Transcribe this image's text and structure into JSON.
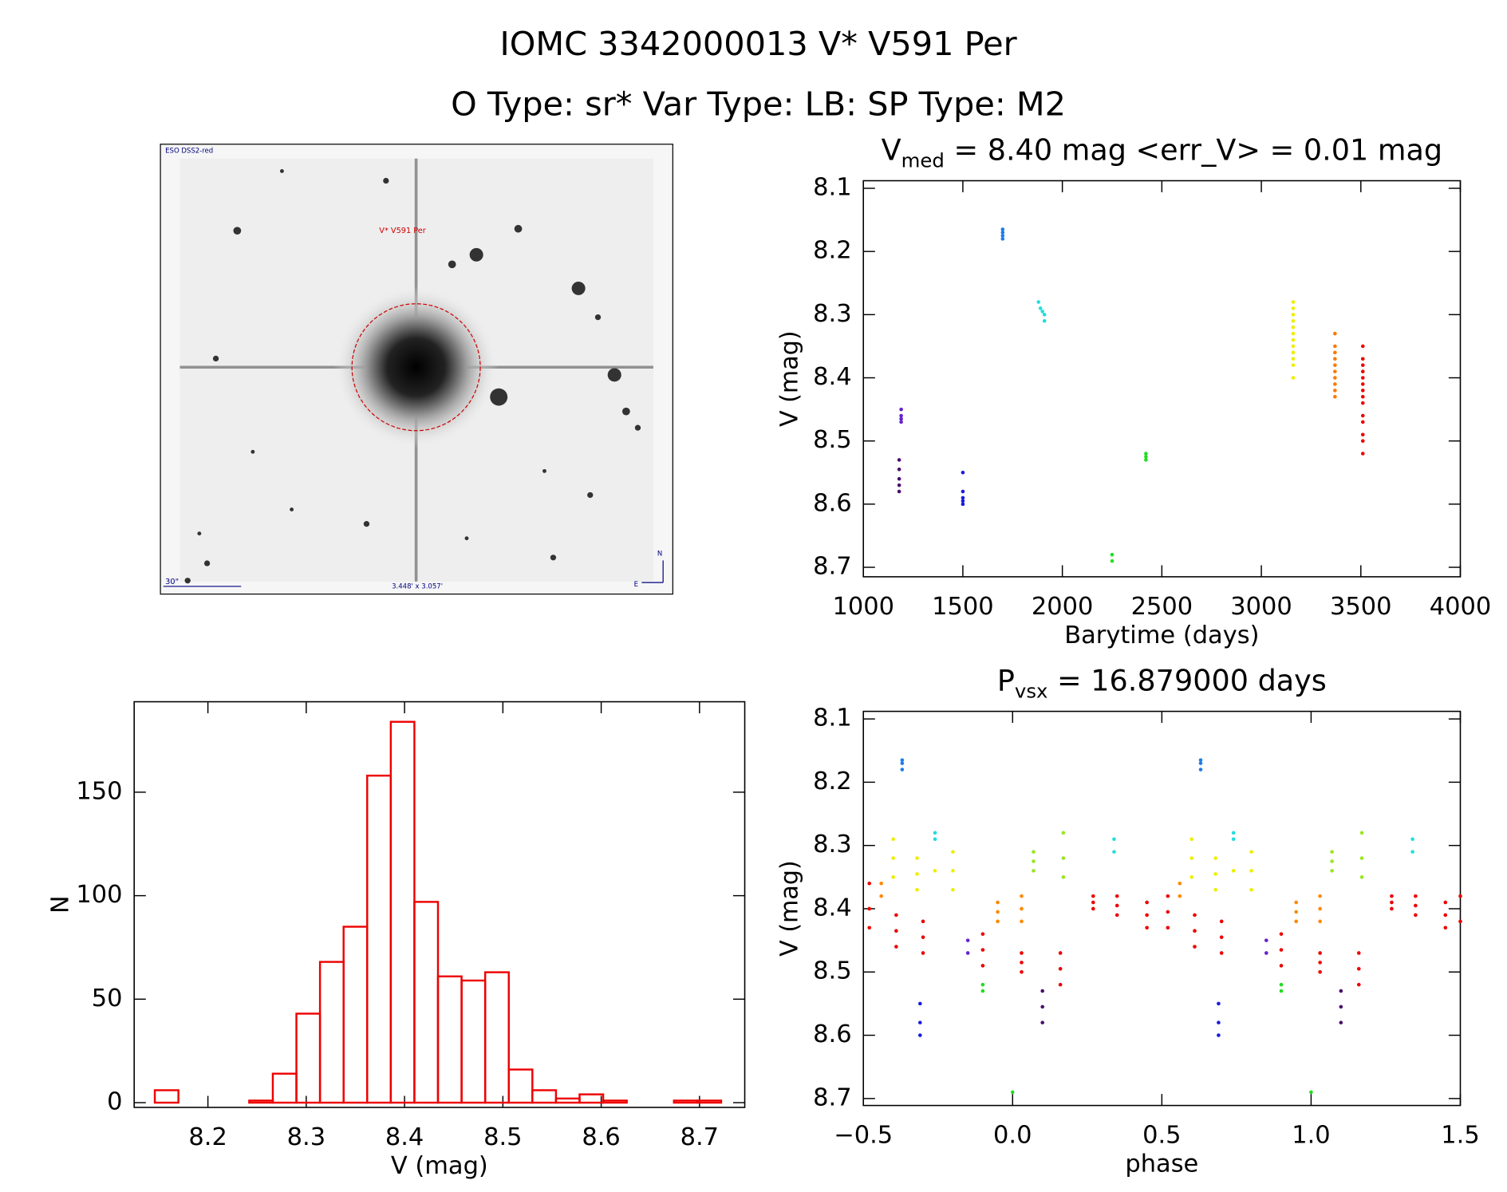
{
  "header": {
    "title": "IOMC 3342000013   V* V591 Per",
    "subtitle": "O Type: sr*  Var Type: LB:  SP Type: M2"
  },
  "image": {
    "survey": "ESO DSS2-red",
    "object": "V* V591 Per",
    "scale": "30\"",
    "size": "3.448' x 3.057'",
    "north": "N",
    "east": "E"
  },
  "chart_data": [
    {
      "type": "scatter",
      "title": {
        "main": "V",
        "sub": "med",
        "rest": " = 8.40 mag <err_V> = 0.01 mag"
      },
      "xlabel": "Barytime (days)",
      "ylabel": "V (mag)",
      "xlim": [
        1000,
        4000
      ],
      "xticks": [
        1000,
        1500,
        2000,
        2500,
        3000,
        3500,
        4000
      ],
      "ylim": [
        8.088,
        8.715
      ],
      "y_inverted": true,
      "yticks": [
        {
          "value": 8.1,
          "label": "8.1"
        },
        {
          "value": 8.2,
          "label": "8.2"
        },
        {
          "value": 8.3,
          "label": "8.3"
        },
        {
          "value": 8.4,
          "label": "8.4"
        },
        {
          "value": 8.5,
          "label": "8.5"
        },
        {
          "value": 8.6,
          "label": "8.6"
        },
        {
          "value": 8.7,
          "label": "8.7"
        }
      ],
      "series": [
        {
          "color": "#4b0f6e",
          "x": [
            1180,
            1180,
            1180,
            1180,
            1180
          ],
          "values": [
            8.53,
            8.545,
            8.56,
            8.57,
            8.58
          ]
        },
        {
          "color": "#6622cc",
          "x": [
            1190,
            1190,
            1190,
            1190
          ],
          "values": [
            8.45,
            8.46,
            8.465,
            8.47
          ]
        },
        {
          "color": "#1a1add",
          "x": [
            1500,
            1500,
            1500,
            1500,
            1500
          ],
          "values": [
            8.55,
            8.58,
            8.59,
            8.595,
            8.6
          ]
        },
        {
          "color": "#1e7ee8",
          "x": [
            1700,
            1700,
            1700,
            1700
          ],
          "values": [
            8.165,
            8.17,
            8.175,
            8.18
          ]
        },
        {
          "color": "#22dddd",
          "x": [
            1880,
            1890,
            1900,
            1910,
            1910
          ],
          "values": [
            8.28,
            8.29,
            8.295,
            8.3,
            8.31
          ]
        },
        {
          "color": "#22dd22",
          "x": [
            2250,
            2250,
            2420,
            2420,
            2420
          ],
          "values": [
            8.68,
            8.69,
            8.52,
            8.525,
            8.53
          ]
        },
        {
          "color": "#eeee00",
          "x": [
            3160,
            3160,
            3160,
            3160,
            3160,
            3160,
            3160,
            3160,
            3160,
            3160,
            3160,
            3160
          ],
          "values": [
            8.28,
            8.29,
            8.3,
            8.31,
            8.32,
            8.33,
            8.34,
            8.35,
            8.36,
            8.37,
            8.38,
            8.4
          ]
        },
        {
          "color": "#ff7700",
          "x": [
            3370,
            3370,
            3370,
            3370,
            3370,
            3370,
            3370,
            3370,
            3370,
            3370
          ],
          "values": [
            8.33,
            8.35,
            8.36,
            8.37,
            8.38,
            8.39,
            8.4,
            8.41,
            8.42,
            8.43
          ]
        },
        {
          "color": "#ee0000",
          "x": [
            3510,
            3510,
            3510,
            3510,
            3510,
            3510,
            3510,
            3510,
            3510,
            3510,
            3510,
            3510,
            3510,
            3510
          ],
          "values": [
            8.35,
            8.37,
            8.38,
            8.39,
            8.4,
            8.41,
            8.42,
            8.43,
            8.44,
            8.46,
            8.47,
            8.49,
            8.5,
            8.52
          ]
        }
      ]
    },
    {
      "type": "scatter",
      "title": {
        "main": "P",
        "sub": "vsx",
        "rest": " = 16.879000 days"
      },
      "xlabel": "phase",
      "ylabel": "V (mag)",
      "xlim": [
        -0.5,
        1.5
      ],
      "xticks": [
        {
          "value": -0.5,
          "label": "−0.5"
        },
        {
          "value": 0,
          "label": "0.0"
        },
        {
          "value": 0.5,
          "label": "0.5"
        },
        {
          "value": 1,
          "label": "1.0"
        },
        {
          "value": 1.5,
          "label": "1.5"
        }
      ],
      "ylim": [
        8.088,
        8.711
      ],
      "y_inverted": true,
      "yticks": [
        {
          "value": 8.1,
          "label": "8.1"
        },
        {
          "value": 8.2,
          "label": "8.2"
        },
        {
          "value": 8.3,
          "label": "8.3"
        },
        {
          "value": 8.4,
          "label": "8.4"
        },
        {
          "value": 8.5,
          "label": "8.5"
        },
        {
          "value": 8.6,
          "label": "8.6"
        },
        {
          "value": 8.7,
          "label": "8.7"
        }
      ],
      "series": [
        {
          "color": "#4b0f6e",
          "x": [
            0.1,
            0.1,
            0.1,
            1.1,
            1.1,
            1.1
          ],
          "values": [
            8.53,
            8.555,
            8.58,
            8.53,
            8.555,
            8.58
          ]
        },
        {
          "color": "#6622cc",
          "x": [
            -0.15,
            -0.15,
            0.85,
            0.85
          ],
          "values": [
            8.45,
            8.47,
            8.45,
            8.47
          ]
        },
        {
          "color": "#1a1add",
          "x": [
            -0.31,
            -0.31,
            -0.31,
            0.69,
            0.69,
            0.69
          ],
          "values": [
            8.55,
            8.58,
            8.6,
            8.55,
            8.58,
            8.6
          ]
        },
        {
          "color": "#1e7ee8",
          "x": [
            -0.37,
            -0.37,
            -0.37,
            0.63,
            0.63,
            0.63
          ],
          "values": [
            8.165,
            8.17,
            8.18,
            8.165,
            8.17,
            8.18
          ]
        },
        {
          "color": "#22dddd",
          "x": [
            -0.26,
            -0.26,
            0.34,
            0.34,
            0.74,
            0.74,
            1.34,
            1.34
          ],
          "values": [
            8.28,
            8.29,
            8.29,
            8.31,
            8.28,
            8.29,
            8.29,
            8.31
          ]
        },
        {
          "color": "#22dd22",
          "x": [
            -0.1,
            -0.1,
            0,
            0.9,
            0.9,
            1
          ],
          "values": [
            8.52,
            8.53,
            8.69,
            8.52,
            8.53,
            8.69
          ]
        },
        {
          "color": "#99e622",
          "x": [
            0.07,
            0.07,
            0.07,
            0.17,
            0.17,
            0.17,
            1.07,
            1.07,
            1.07,
            1.17,
            1.17,
            1.17
          ],
          "values": [
            8.31,
            8.325,
            8.34,
            8.28,
            8.32,
            8.35,
            8.31,
            8.325,
            8.34,
            8.28,
            8.32,
            8.35
          ]
        },
        {
          "color": "#eeee00",
          "x": [
            -0.4,
            -0.4,
            -0.4,
            -0.32,
            -0.32,
            -0.32,
            -0.26,
            -0.2,
            -0.2,
            -0.2,
            0.6,
            0.6,
            0.6,
            0.68,
            0.68,
            0.68,
            0.74,
            0.8,
            0.8,
            0.8
          ],
          "values": [
            8.29,
            8.32,
            8.35,
            8.32,
            8.345,
            8.37,
            8.34,
            8.31,
            8.34,
            8.37,
            8.29,
            8.32,
            8.35,
            8.32,
            8.345,
            8.37,
            8.34,
            8.31,
            8.34,
            8.37
          ]
        },
        {
          "color": "#ff8800",
          "x": [
            -0.44,
            -0.44,
            -0.05,
            -0.05,
            -0.05,
            0.03,
            0.03,
            0.03,
            0.56,
            0.56,
            0.95,
            0.95,
            0.95,
            1.03,
            1.03,
            1.03
          ],
          "values": [
            8.36,
            8.38,
            8.39,
            8.405,
            8.42,
            8.38,
            8.4,
            8.42,
            8.36,
            8.38,
            8.39,
            8.405,
            8.42,
            8.38,
            8.4,
            8.42
          ]
        },
        {
          "color": "#ee0000",
          "x": [
            -0.48,
            -0.48,
            -0.48,
            -0.39,
            -0.39,
            -0.39,
            -0.3,
            -0.3,
            -0.3,
            -0.1,
            -0.1,
            -0.1,
            0.03,
            0.03,
            0.03,
            0.16,
            0.16,
            0.16,
            0.27,
            0.27,
            0.27,
            0.35,
            0.35,
            0.35,
            0.45,
            0.45,
            0.45,
            0.52,
            0.52,
            0.52,
            0.61,
            0.61,
            0.61,
            0.7,
            0.7,
            0.7,
            0.9,
            0.9,
            0.9,
            1.03,
            1.03,
            1.03,
            1.16,
            1.16,
            1.16,
            1.27,
            1.27,
            1.27,
            1.35,
            1.35,
            1.35,
            1.45,
            1.45,
            1.45,
            1.5,
            1.5
          ],
          "values": [
            8.36,
            8.4,
            8.43,
            8.41,
            8.435,
            8.46,
            8.42,
            8.445,
            8.47,
            8.44,
            8.465,
            8.49,
            8.47,
            8.485,
            8.5,
            8.47,
            8.495,
            8.52,
            8.38,
            8.39,
            8.4,
            8.38,
            8.395,
            8.41,
            8.39,
            8.41,
            8.43,
            8.38,
            8.405,
            8.43,
            8.41,
            8.435,
            8.46,
            8.42,
            8.445,
            8.47,
            8.44,
            8.465,
            8.49,
            8.47,
            8.485,
            8.5,
            8.47,
            8.495,
            8.52,
            8.38,
            8.39,
            8.4,
            8.38,
            8.395,
            8.41,
            8.39,
            8.41,
            8.43,
            8.38,
            8.42
          ]
        }
      ]
    },
    {
      "type": "histogram",
      "xlabel": "V (mag)",
      "ylabel": "N",
      "color": "#ee0000",
      "bins": [
        8.146,
        8.17,
        8.194,
        8.218,
        8.242,
        8.266,
        8.29,
        8.314,
        8.338,
        8.362,
        8.386,
        8.41,
        8.434,
        8.458,
        8.482,
        8.506,
        8.53,
        8.554,
        8.578,
        8.602,
        8.626,
        8.65,
        8.674,
        8.698,
        8.722
      ],
      "counts": [
        6,
        0,
        0,
        0,
        1,
        14,
        43,
        68,
        85,
        158,
        184,
        97,
        61,
        59,
        63,
        16,
        6,
        2,
        4,
        1,
        0,
        0,
        1,
        1
      ],
      "xlim": [
        8.125,
        8.746
      ],
      "xticks": [
        8.2,
        8.3,
        8.4,
        8.5,
        8.6,
        8.7
      ],
      "ylim": [
        -2.3,
        193.7
      ],
      "yticks": [
        0,
        50,
        100,
        150
      ]
    }
  ]
}
